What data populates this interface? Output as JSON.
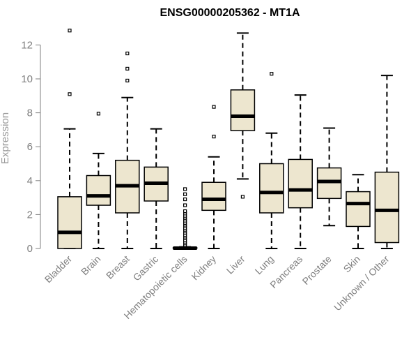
{
  "chart_data": {
    "type": "box",
    "title": "ENSG00000205362 - MT1A",
    "xlabel": "",
    "ylabel": "Expression",
    "ylim": [
      0,
      12.5
    ],
    "yticks": [
      0,
      2,
      4,
      6,
      8,
      10,
      12
    ],
    "colors": {
      "box_fill": "#ede6cf",
      "stroke": "#000000",
      "axis": "#7f7f7f"
    },
    "categories": [
      "Bladder",
      "Brain",
      "Breast",
      "Gastric",
      "Hematopoietic cells",
      "Kidney",
      "Liver",
      "Lung",
      "Pancreas",
      "Prostate",
      "Skin",
      "Unknown / Other"
    ],
    "boxes": [
      {
        "name": "Bladder",
        "whisker_low": 0,
        "q1": 0,
        "median": 0.95,
        "q3": 3.05,
        "whisker_high": 7.05,
        "outliers": [
          9.1,
          12.85
        ]
      },
      {
        "name": "Brain",
        "whisker_low": 0,
        "q1": 2.55,
        "median": 3.1,
        "q3": 4.3,
        "whisker_high": 5.6,
        "outliers": [
          7.95
        ]
      },
      {
        "name": "Breast",
        "whisker_low": 0,
        "q1": 2.1,
        "median": 3.7,
        "q3": 5.2,
        "whisker_high": 8.9,
        "outliers": [
          9.9,
          10.6,
          11.5
        ]
      },
      {
        "name": "Gastric",
        "whisker_low": 0,
        "q1": 2.8,
        "median": 3.85,
        "q3": 4.8,
        "whisker_high": 7.05,
        "outliers": []
      },
      {
        "name": "Hematopoietic cells",
        "whisker_low": 0,
        "q1": 0,
        "median": 0.02,
        "q3": 0.05,
        "whisker_high": 0.1,
        "outliers": [
          0.2,
          0.3,
          0.4,
          0.5,
          0.6,
          0.7,
          0.8,
          0.9,
          1.0,
          1.1,
          1.2,
          1.3,
          1.4,
          1.5,
          1.6,
          1.7,
          1.8,
          1.9,
          2.0,
          2.1,
          2.2,
          2.55,
          2.9,
          3.2,
          3.5
        ]
      },
      {
        "name": "Kidney",
        "whisker_low": 0,
        "q1": 2.25,
        "median": 2.9,
        "q3": 3.9,
        "whisker_high": 5.4,
        "outliers": [
          6.6,
          8.35
        ]
      },
      {
        "name": "Liver",
        "whisker_low": 4.1,
        "q1": 6.95,
        "median": 7.8,
        "q3": 9.35,
        "whisker_high": 12.7,
        "outliers": [
          3.05
        ]
      },
      {
        "name": "Lung",
        "whisker_low": 0,
        "q1": 2.1,
        "median": 3.3,
        "q3": 5.0,
        "whisker_high": 6.8,
        "outliers": [
          10.3
        ]
      },
      {
        "name": "Pancreas",
        "whisker_low": 0,
        "q1": 2.4,
        "median": 3.45,
        "q3": 5.25,
        "whisker_high": 9.05,
        "outliers": []
      },
      {
        "name": "Prostate",
        "whisker_low": 1.35,
        "q1": 2.95,
        "median": 3.95,
        "q3": 4.75,
        "whisker_high": 7.1,
        "outliers": []
      },
      {
        "name": "Skin",
        "whisker_low": 0,
        "q1": 1.3,
        "median": 2.65,
        "q3": 3.35,
        "whisker_high": 4.35,
        "outliers": []
      },
      {
        "name": "Unknown / Other",
        "whisker_low": 0,
        "q1": 0.35,
        "median": 2.25,
        "q3": 4.5,
        "whisker_high": 10.2,
        "outliers": []
      }
    ]
  }
}
